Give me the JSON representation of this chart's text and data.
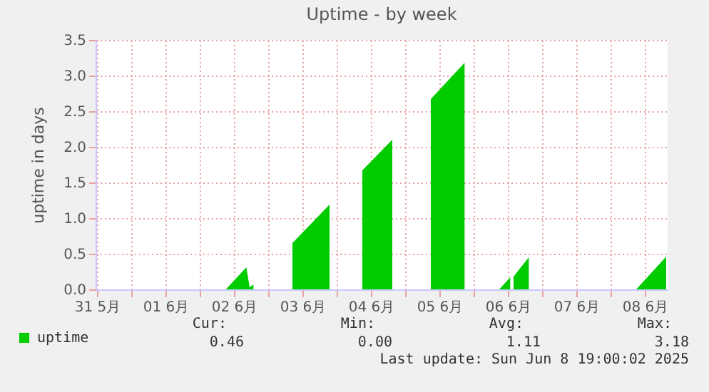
{
  "chart_data": {
    "type": "area",
    "title": "Uptime - by week",
    "ylabel": "uptime in days",
    "x": [
      "2025-06-02T09:10",
      "2025-06-02T16:20",
      "2025-06-02T17:30",
      "2025-06-02T18:50",
      "2025-06-02T19:00",
      "2025-06-03T08:30",
      "2025-06-03T21:30",
      "2025-06-03T22:00",
      "2025-06-04T09:00",
      "2025-06-04T19:30",
      "2025-06-04T20:00",
      "2025-06-05T09:00",
      "2025-06-05T20:50",
      "2025-06-05T21:00",
      "2025-06-06T09:00",
      "2025-06-06T12:50",
      "2025-06-06T13:30",
      "2025-06-06T14:00",
      "2025-06-06T19:20",
      "2025-06-06T20:00",
      "2025-06-08T09:00",
      "2025-06-08T19:30"
    ],
    "series": [
      {
        "name": "uptime",
        "color": "#00cc00",
        "values": [
          0,
          0.31,
          0.03,
          0.07,
          null,
          0.65,
          1.19,
          null,
          1.67,
          2.1,
          null,
          2.67,
          3.18,
          null,
          0,
          0.17,
          null,
          0.18,
          0.45,
          null,
          0,
          0.46
        ]
      }
    ],
    "xlim": [
      "2025-05-31T11:30",
      "2025-06-08T20:00"
    ],
    "xticks": [
      {
        "value": "2025-05-31T12:00",
        "label": "31 5月"
      },
      {
        "value": "2025-06-01T00:00",
        "label": null
      },
      {
        "value": "2025-06-01T12:00",
        "label": "01 6月"
      },
      {
        "value": "2025-06-02T00:00",
        "label": null
      },
      {
        "value": "2025-06-02T12:00",
        "label": "02 6月"
      },
      {
        "value": "2025-06-03T00:00",
        "label": null
      },
      {
        "value": "2025-06-03T12:00",
        "label": "03 6月"
      },
      {
        "value": "2025-06-04T00:00",
        "label": null
      },
      {
        "value": "2025-06-04T12:00",
        "label": "04 6月"
      },
      {
        "value": "2025-06-05T00:00",
        "label": null
      },
      {
        "value": "2025-06-05T12:00",
        "label": "05 6月"
      },
      {
        "value": "2025-06-06T00:00",
        "label": null
      },
      {
        "value": "2025-06-06T12:00",
        "label": "06 6月"
      },
      {
        "value": "2025-06-07T00:00",
        "label": null
      },
      {
        "value": "2025-06-07T12:00",
        "label": "07 6月"
      },
      {
        "value": "2025-06-08T00:00",
        "label": null
      },
      {
        "value": "2025-06-08T12:00",
        "label": "08 6月"
      }
    ],
    "ylim": [
      0,
      3.5
    ],
    "yticks": [
      {
        "value": 0,
        "label": "0.0"
      },
      {
        "value": 0.5,
        "label": "0.5"
      },
      {
        "value": 1,
        "label": "1.0"
      },
      {
        "value": 1.5,
        "label": "1.5"
      },
      {
        "value": 2,
        "label": "2.0"
      },
      {
        "value": 2.5,
        "label": "2.5"
      },
      {
        "value": 3,
        "label": "3.0"
      },
      {
        "value": 3.5,
        "label": "3.5"
      }
    ],
    "grid": true,
    "legend": "bottom left",
    "annotations": [
      "Cur:",
      "Min:",
      "Avg:",
      "Max:",
      "0.46",
      "0.00",
      "1.11",
      "3.18",
      "Last update: Sun Jun  8 19:00:02 2025"
    ]
  }
}
